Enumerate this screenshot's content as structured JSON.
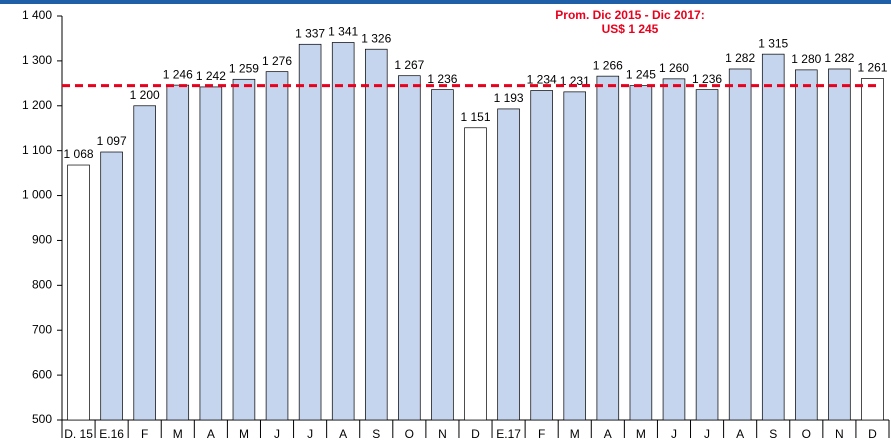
{
  "chart_data": {
    "type": "bar",
    "categories": [
      "D. 15",
      "E.16",
      "F",
      "M",
      "A",
      "M",
      "J",
      "J",
      "A",
      "S",
      "O",
      "N",
      "D",
      "E.17",
      "F",
      "M",
      "A",
      "M",
      "J",
      "J",
      "A",
      "S",
      "O",
      "N",
      "D"
    ],
    "values": [
      1068,
      1097,
      1200,
      1246,
      1242,
      1259,
      1276,
      1337,
      1341,
      1326,
      1267,
      1236,
      1151,
      1193,
      1234,
      1231,
      1266,
      1245,
      1260,
      1236,
      1282,
      1315,
      1280,
      1282,
      1261
    ],
    "value_labels": [
      "1 068",
      "1 097",
      "1 200",
      "1 246",
      "1 242",
      "1 259",
      "1 276",
      "1 337",
      "1 341",
      "1 326",
      "1 267",
      "1 236",
      "1 151",
      "1 193",
      "1 234",
      "1 231",
      "1 266",
      "1 245",
      "1 260",
      "1 236",
      "1 282",
      "1 315",
      "1 280",
      "1 282",
      "1 261"
    ],
    "colors": [
      "#ffffff",
      "#c5d5ee",
      "#c5d5ee",
      "#c5d5ee",
      "#c5d5ee",
      "#c5d5ee",
      "#c5d5ee",
      "#c5d5ee",
      "#c5d5ee",
      "#c5d5ee",
      "#c5d5ee",
      "#c5d5ee",
      "#ffffff",
      "#c5d5ee",
      "#c5d5ee",
      "#c5d5ee",
      "#c5d5ee",
      "#c5d5ee",
      "#c5d5ee",
      "#c5d5ee",
      "#c5d5ee",
      "#c5d5ee",
      "#c5d5ee",
      "#c5d5ee",
      "#ffffff"
    ],
    "ylim": [
      500,
      1400
    ],
    "yticks": [
      500,
      600,
      700,
      800,
      900,
      {
        "value": 1000,
        "label": "1 000"
      },
      {
        "value": 1100,
        "label": "1 100"
      },
      {
        "value": 1200,
        "label": "1 200"
      },
      {
        "value": 1300,
        "label": "1 300"
      },
      {
        "value": 1400,
        "label": "1 400"
      }
    ],
    "reference_line": {
      "value": 1245,
      "color": "#e8001c",
      "label": [
        "Prom. Dic 2015 - Dic 2017:",
        "US$ 1 245"
      ]
    }
  }
}
